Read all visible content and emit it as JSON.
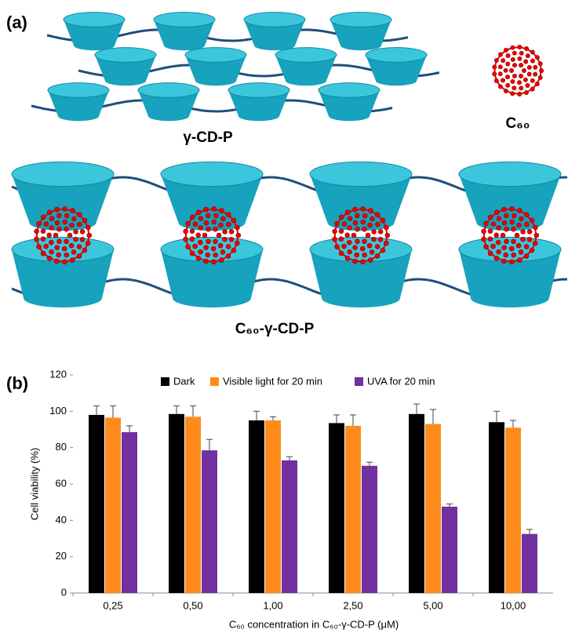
{
  "panel_a": {
    "label": "(a)",
    "polymer_label": "γ-CD-P",
    "fullerene_label": "C₆₀",
    "complex_label": "C₆₀-γ-CD-P"
  },
  "chart_data": {
    "type": "bar",
    "panel_label": "(b)",
    "x_label": "C₆₀ concentration in C₆₀-γ-CD-P (μM)",
    "y_label": "Cell viability (%)",
    "categories": [
      "0,25",
      "0,50",
      "1,00",
      "2,50",
      "5,00",
      "10,00"
    ],
    "series": [
      {
        "name": "Dark",
        "color": "#000000",
        "values": [
          98,
          98.5,
          95,
          93.5,
          98.5,
          94
        ],
        "errors": [
          5,
          4.5,
          5,
          4.5,
          5.5,
          6
        ]
      },
      {
        "name": "Visible light for 20 min",
        "color": "#ff8c1a",
        "values": [
          96.5,
          97,
          95,
          92,
          93,
          91
        ],
        "errors": [
          6.5,
          6,
          2,
          6,
          8,
          4
        ]
      },
      {
        "name": "UVA for 20 min",
        "color": "#7030a0",
        "values": [
          88.5,
          78.5,
          73,
          70,
          47.5,
          32.5
        ],
        "errors": [
          3.5,
          6,
          2,
          2,
          1.5,
          2.5
        ]
      }
    ],
    "ylim": [
      0,
      120
    ],
    "yticks": [
      0,
      20,
      40,
      60,
      80,
      100,
      120
    ],
    "grid": false,
    "legend": "top"
  }
}
